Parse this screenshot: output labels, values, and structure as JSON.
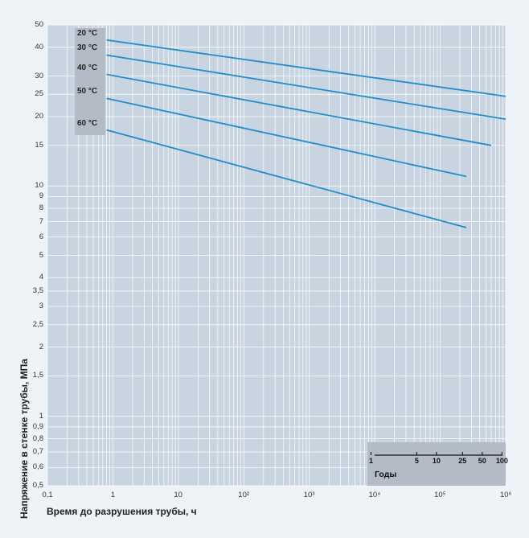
{
  "chart_data": {
    "type": "line",
    "x_scale": "log",
    "y_scale": "log",
    "xlim": [
      0.1,
      1000000
    ],
    "ylim": [
      0.5,
      50
    ],
    "xlabel": "Время до разрушения трубы, ч",
    "ylabel": "Напряжение в стенке трубы, МПа",
    "x_tick_labels": [
      {
        "label": "0,1",
        "value": 0.1
      },
      {
        "label": "1",
        "value": 1
      },
      {
        "label": "10",
        "value": 10
      },
      {
        "label": "10²",
        "value": 100
      },
      {
        "label": "10³",
        "value": 1000
      },
      {
        "label": "10⁴",
        "value": 10000
      },
      {
        "label": "10⁵",
        "value": 100000
      },
      {
        "label": "10⁶",
        "value": 1000000
      }
    ],
    "y_tick_labels": [
      {
        "label": "50",
        "value": 50
      },
      {
        "label": "40",
        "value": 40
      },
      {
        "label": "30",
        "value": 30
      },
      {
        "label": "25",
        "value": 25
      },
      {
        "label": "20",
        "value": 20
      },
      {
        "label": "15",
        "value": 15
      },
      {
        "label": "10",
        "value": 10
      },
      {
        "label": "9",
        "value": 9
      },
      {
        "label": "8",
        "value": 8
      },
      {
        "label": "7",
        "value": 7
      },
      {
        "label": "6",
        "value": 6
      },
      {
        "label": "5",
        "value": 5
      },
      {
        "label": "4",
        "value": 4
      },
      {
        "label": "3,5",
        "value": 3.5
      },
      {
        "label": "3",
        "value": 3
      },
      {
        "label": "2,5",
        "value": 2.5
      },
      {
        "label": "2",
        "value": 2
      },
      {
        "label": "1,5",
        "value": 1.5
      },
      {
        "label": "1",
        "value": 1
      },
      {
        "label": "0,9",
        "value": 0.9
      },
      {
        "label": "0,8",
        "value": 0.8
      },
      {
        "label": "0,7",
        "value": 0.7
      },
      {
        "label": "0,6",
        "value": 0.6
      },
      {
        "label": "0,5",
        "value": 0.5
      }
    ],
    "series": [
      {
        "name": "20 °C",
        "x": [
          0.8,
          1000000
        ],
        "y": [
          43,
          24.5
        ]
      },
      {
        "name": "30 °C",
        "x": [
          0.8,
          1000000
        ],
        "y": [
          37,
          19.5
        ]
      },
      {
        "name": "40 °C",
        "x": [
          0.8,
          600000
        ],
        "y": [
          30.5,
          15
        ]
      },
      {
        "name": "50 °C",
        "x": [
          0.8,
          250000
        ],
        "y": [
          24,
          11
        ]
      },
      {
        "name": "60 °C",
        "x": [
          0.8,
          250000
        ],
        "y": [
          17.5,
          6.6
        ]
      }
    ],
    "line_color": "#1a8fd1",
    "grid": true,
    "years_scale": {
      "title": "Годы",
      "ticks": [
        {
          "label": "1",
          "hours": 8760
        },
        {
          "label": "5",
          "hours": 43800
        },
        {
          "label": "10",
          "hours": 87600
        },
        {
          "label": "25",
          "hours": 219000
        },
        {
          "label": "50",
          "hours": 438000
        },
        {
          "label": "100",
          "hours": 876000
        }
      ]
    }
  },
  "colors": {
    "page_bg": "#eef3f7",
    "plot_bg": "#c8d4df",
    "grid": "#ffffff",
    "series": "#1a8fd1",
    "inset_bg": "#b3bcc6"
  }
}
